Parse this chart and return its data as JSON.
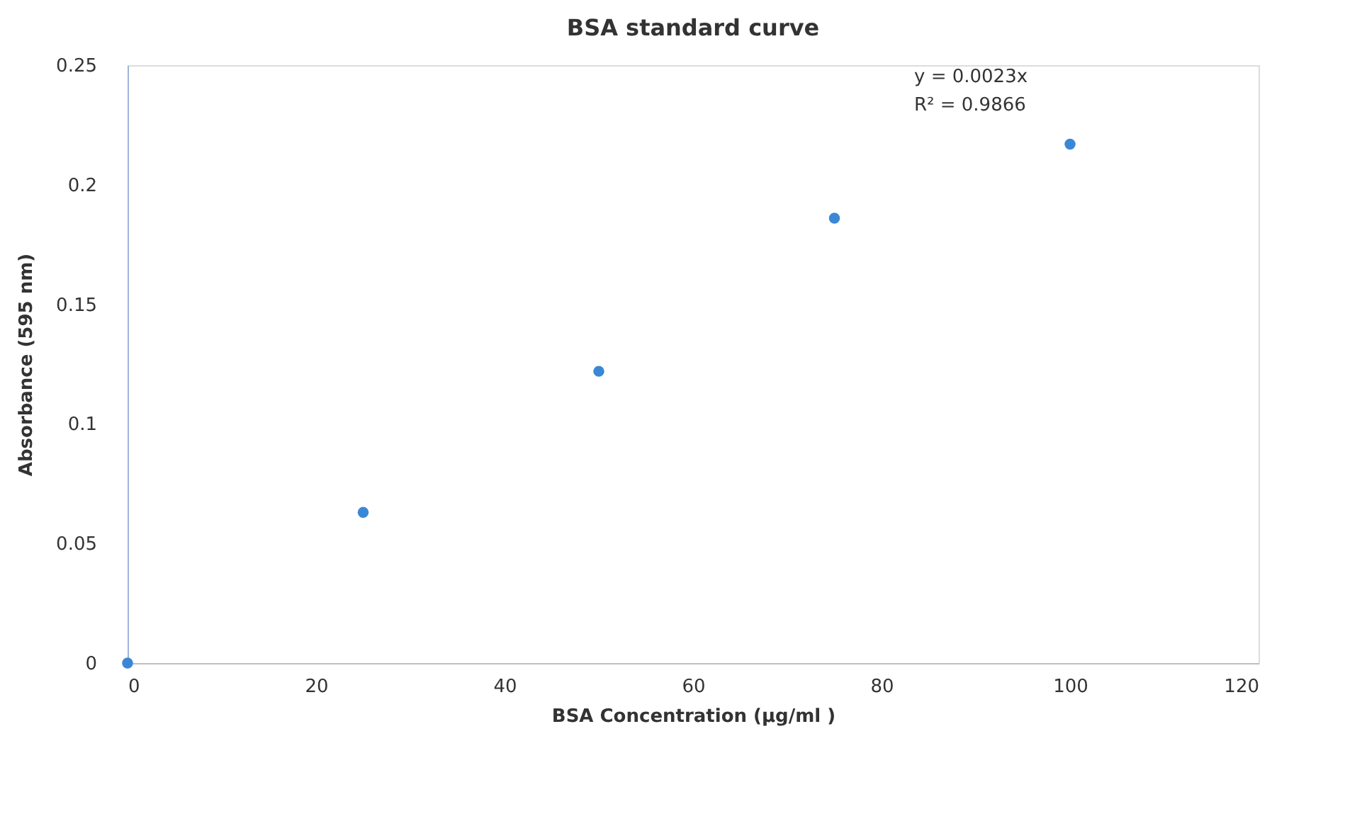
{
  "chart_data": {
    "type": "scatter",
    "title": "BSA standard curve",
    "xlabel": "BSA Concentration (µg/ml )",
    "ylabel": "Absorbance (595 nm)",
    "x": [
      0,
      25,
      50,
      75,
      100
    ],
    "series": [
      {
        "color": "#3a87d6",
        "values": [
          0,
          0.063,
          0.122,
          0.186,
          0.217
        ]
      }
    ],
    "xlim": [
      0,
      120
    ],
    "xticks": [
      0,
      20,
      40,
      60,
      80,
      100,
      120
    ],
    "ylim": [
      0,
      0.25
    ],
    "yticks": [
      0,
      0.05,
      0.1,
      0.15,
      0.2,
      0.25
    ],
    "annotations": [
      "y = 0.0023x",
      "R² = 0.9866"
    ],
    "grid": false,
    "legend": false,
    "marker": "circle"
  }
}
